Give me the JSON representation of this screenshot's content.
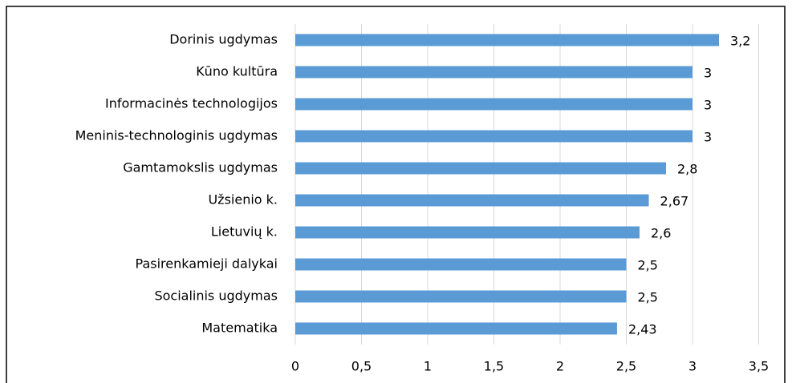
{
  "chart_data": {
    "type": "bar",
    "orientation": "horizontal",
    "categories": [
      "Dorinis ugdymas",
      "Kūno kultūra",
      "Informacinės technologijos",
      "Meninis-technologinis ugdymas",
      "Gamtamokslis ugdymas",
      "Užsienio k.",
      "Lietuvių k.",
      "Pasirenkamieji dalykai",
      "Socialinis ugdymas",
      "Matematika"
    ],
    "values": [
      3.2,
      3,
      3,
      3,
      2.8,
      2.67,
      2.6,
      2.5,
      2.5,
      2.43
    ],
    "value_labels": [
      "3,2",
      "3",
      "3",
      "3",
      "2,8",
      "2,67",
      "2,6",
      "2,5",
      "2,5",
      "2,43"
    ],
    "color": "#5b9bd5",
    "xlim": [
      0,
      3.5
    ],
    "xticks": [
      0,
      {
        "value": 0.5,
        "label": "0,5"
      },
      1,
      {
        "value": 1.5,
        "label": "1,5"
      },
      2,
      {
        "value": 2.5,
        "label": "2,5"
      },
      3,
      {
        "value": 3.5,
        "label": "3,5"
      }
    ],
    "grid": true
  }
}
